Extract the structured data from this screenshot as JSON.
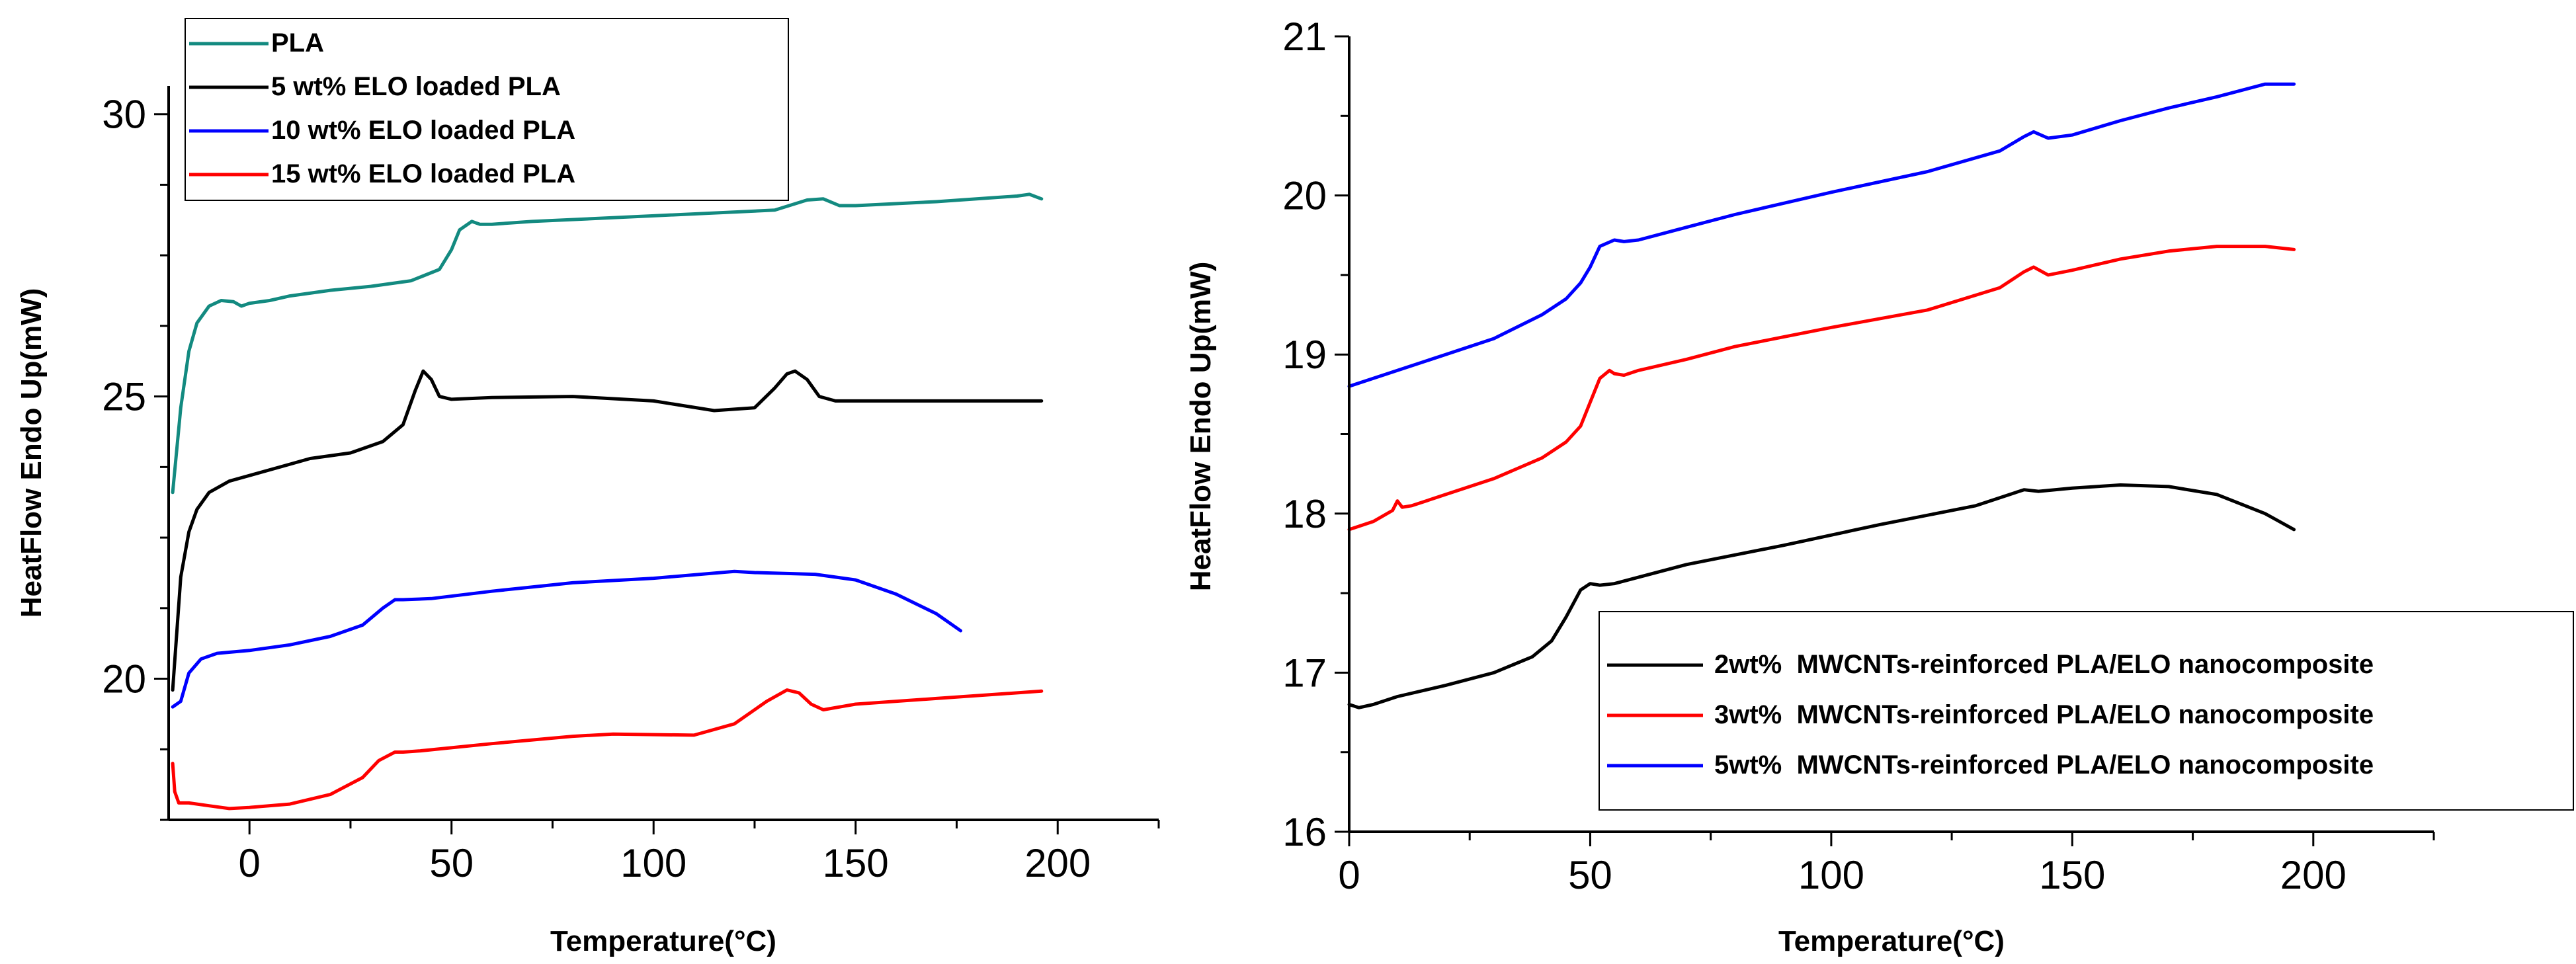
{
  "chart_data": [
    {
      "type": "line",
      "xlabel": "Temperature(°C)",
      "ylabel": "HeatFlow Endo Up(mW)",
      "xlim": [
        -20,
        225
      ],
      "ylim": [
        17.5,
        30.5
      ],
      "xticks": [
        0,
        50,
        100,
        150,
        200
      ],
      "yticks": [
        20,
        25,
        30
      ],
      "xtick_labels": [
        "0",
        "50",
        "100",
        "150",
        "200"
      ],
      "ytick_labels": [
        "20",
        "25",
        "30"
      ],
      "legend_position": "top-left",
      "series": [
        {
          "name": "PLA",
          "color": "#138a80",
          "x": [
            -19,
            -17,
            -15,
            -13,
            -10,
            -7,
            -4,
            -2,
            0,
            5,
            10,
            20,
            30,
            40,
            47,
            50,
            52,
            55,
            57,
            60,
            70,
            100,
            130,
            138,
            142,
            146,
            150,
            170,
            190,
            193,
            196
          ],
          "y": [
            23.3,
            24.8,
            25.8,
            26.3,
            26.6,
            26.7,
            26.68,
            26.6,
            26.65,
            26.7,
            26.78,
            26.88,
            26.95,
            27.05,
            27.25,
            27.6,
            27.95,
            28.1,
            28.05,
            28.05,
            28.1,
            28.2,
            28.3,
            28.48,
            28.5,
            28.38,
            28.38,
            28.45,
            28.55,
            28.58,
            28.5
          ]
        },
        {
          "name": "5 wt% ELO loaded PLA",
          "color": "#000000",
          "x": [
            -19,
            -17,
            -15,
            -13,
            -10,
            -5,
            0,
            10,
            15,
            25,
            33,
            38,
            41,
            43,
            45,
            47,
            50,
            60,
            80,
            100,
            115,
            125,
            130,
            133,
            135,
            138,
            141,
            145,
            160,
            196
          ],
          "y": [
            19.8,
            21.8,
            22.6,
            23.0,
            23.3,
            23.5,
            23.6,
            23.8,
            23.9,
            24.0,
            24.2,
            24.5,
            25.1,
            25.45,
            25.3,
            25.0,
            24.95,
            24.98,
            25.0,
            24.92,
            24.75,
            24.8,
            25.15,
            25.4,
            25.45,
            25.3,
            25.0,
            24.92,
            24.92,
            24.92
          ]
        },
        {
          "name": "10 wt% ELO loaded PLA",
          "color": "#0000ff",
          "x": [
            -19,
            -17,
            -15,
            -12,
            -8,
            0,
            10,
            20,
            28,
            33,
            36,
            38,
            45,
            60,
            80,
            100,
            120,
            125,
            140,
            150,
            160,
            170,
            176
          ],
          "y": [
            19.5,
            19.6,
            20.1,
            20.35,
            20.45,
            20.5,
            20.6,
            20.75,
            20.95,
            21.25,
            21.4,
            21.4,
            21.42,
            21.55,
            21.7,
            21.78,
            21.9,
            21.88,
            21.85,
            21.75,
            21.5,
            21.15,
            20.85
          ]
        },
        {
          "name": "15 wt% ELO loaded PLA",
          "color": "#ff0000",
          "x": [
            -19,
            -18.5,
            -17.5,
            -15,
            -10,
            -5,
            0,
            10,
            20,
            28,
            32,
            36,
            38,
            42,
            60,
            80,
            90,
            110,
            120,
            128,
            133,
            136,
            139,
            142,
            150,
            170,
            196
          ],
          "y": [
            18.5,
            18.0,
            17.8,
            17.8,
            17.75,
            17.7,
            17.72,
            17.78,
            17.95,
            18.25,
            18.55,
            18.7,
            18.7,
            18.72,
            18.85,
            18.98,
            19.02,
            19.0,
            19.2,
            19.6,
            19.8,
            19.75,
            19.55,
            19.45,
            19.55,
            19.65,
            19.78
          ]
        }
      ]
    },
    {
      "type": "line",
      "xlabel": "Temperature(°C)",
      "ylabel": "HeatFlow Endo Up(mW)",
      "xlim": [
        0,
        225
      ],
      "ylim": [
        16,
        21
      ],
      "xticks": [
        0,
        50,
        100,
        150,
        200
      ],
      "yticks": [
        16,
        17,
        18,
        19,
        20,
        21
      ],
      "xtick_labels": [
        "0",
        "50",
        "100",
        "150",
        "200"
      ],
      "ytick_labels": [
        "16",
        "17",
        "18",
        "19",
        "20",
        "21"
      ],
      "legend_position": "bottom-right",
      "series": [
        {
          "name": "2wt%  MWCNTs-reinforced PLA/ELO nanocomposite",
          "color": "#000000",
          "x": [
            0,
            2,
            5,
            10,
            20,
            30,
            38,
            42,
            45,
            48,
            50,
            52,
            55,
            70,
            90,
            110,
            130,
            135,
            140,
            143,
            150,
            160,
            170,
            180,
            190,
            196
          ],
          "y": [
            16.8,
            16.78,
            16.8,
            16.85,
            16.92,
            17.0,
            17.1,
            17.2,
            17.35,
            17.52,
            17.56,
            17.55,
            17.56,
            17.68,
            17.8,
            17.93,
            18.05,
            18.1,
            18.15,
            18.14,
            18.16,
            18.18,
            18.17,
            18.12,
            18.0,
            17.9
          ]
        },
        {
          "name": "3wt%  MWCNTs-reinforced PLA/ELO nanocomposite",
          "color": "#ff0000",
          "x": [
            0,
            5,
            9,
            10,
            11,
            13,
            20,
            30,
            40,
            45,
            48,
            50,
            52,
            54,
            55,
            57,
            60,
            70,
            80,
            100,
            120,
            135,
            140,
            142,
            145,
            150,
            160,
            170,
            180,
            190,
            196
          ],
          "y": [
            17.9,
            17.95,
            18.02,
            18.08,
            18.04,
            18.05,
            18.12,
            18.22,
            18.35,
            18.45,
            18.55,
            18.7,
            18.85,
            18.9,
            18.88,
            18.87,
            18.9,
            18.97,
            19.05,
            19.17,
            19.28,
            19.42,
            19.52,
            19.55,
            19.5,
            19.53,
            19.6,
            19.65,
            19.68,
            19.68,
            19.66
          ]
        },
        {
          "name": "5wt%  MWCNTs-reinforced PLA/ELO nanocomposite",
          "color": "#0000ff",
          "x": [
            0,
            10,
            20,
            30,
            40,
            45,
            48,
            50,
            52,
            55,
            57,
            60,
            70,
            80,
            100,
            120,
            135,
            140,
            142,
            145,
            150,
            160,
            170,
            180,
            190,
            196
          ],
          "y": [
            18.8,
            18.9,
            19.0,
            19.1,
            19.25,
            19.35,
            19.45,
            19.55,
            19.68,
            19.72,
            19.71,
            19.72,
            19.8,
            19.88,
            20.02,
            20.15,
            20.28,
            20.37,
            20.4,
            20.36,
            20.38,
            20.47,
            20.55,
            20.62,
            20.7,
            20.7
          ]
        }
      ]
    }
  ]
}
